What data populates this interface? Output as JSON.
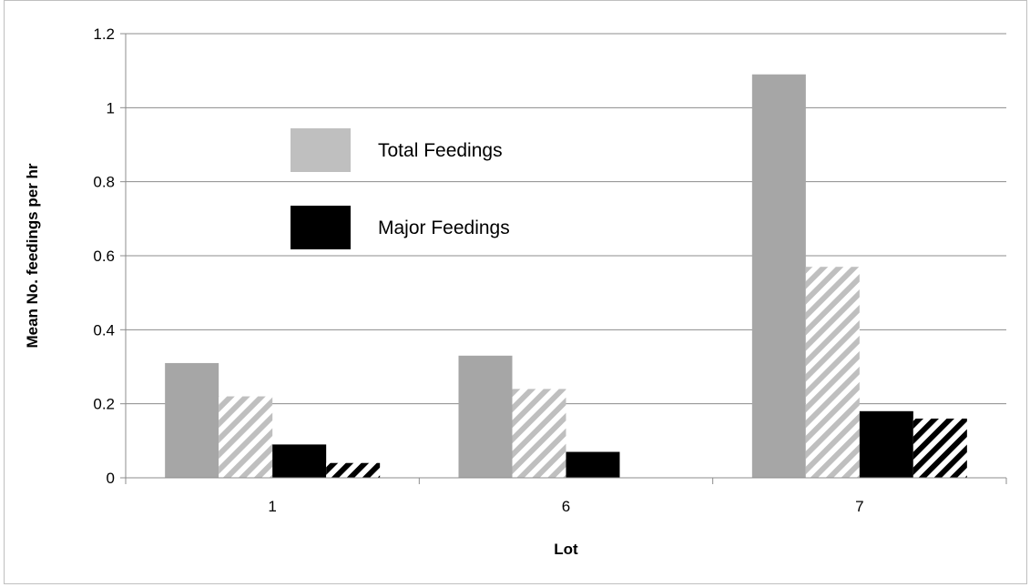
{
  "chart_data": {
    "type": "bar",
    "title": "",
    "xlabel": "Lot",
    "ylabel": "Mean No. feedings per hr",
    "categories": [
      "1",
      "6",
      "7"
    ],
    "ylim": [
      0,
      1.2
    ],
    "yticks": [
      "0",
      "0.2",
      "0.4",
      "0.6",
      "0.8",
      "1",
      "1.2"
    ],
    "grid": true,
    "legend_placement": "upper-left-inside",
    "legend": [
      {
        "label": "Total Feedings",
        "color": "#bfbfbf"
      },
      {
        "label": "Major Feedings",
        "color": "#000000"
      }
    ],
    "series": [
      {
        "style": "solid",
        "color": "#a6a6a6",
        "values": [
          0.31,
          0.33,
          1.09
        ]
      },
      {
        "style": "hatched",
        "color": "#bfbfbf",
        "values": [
          0.22,
          0.24,
          0.57
        ]
      },
      {
        "style": "solid",
        "color": "#000000",
        "values": [
          0.09,
          0.07,
          0.18
        ]
      },
      {
        "style": "hatched",
        "color": "#000000",
        "values": [
          0.04,
          0,
          0.16
        ]
      }
    ]
  }
}
